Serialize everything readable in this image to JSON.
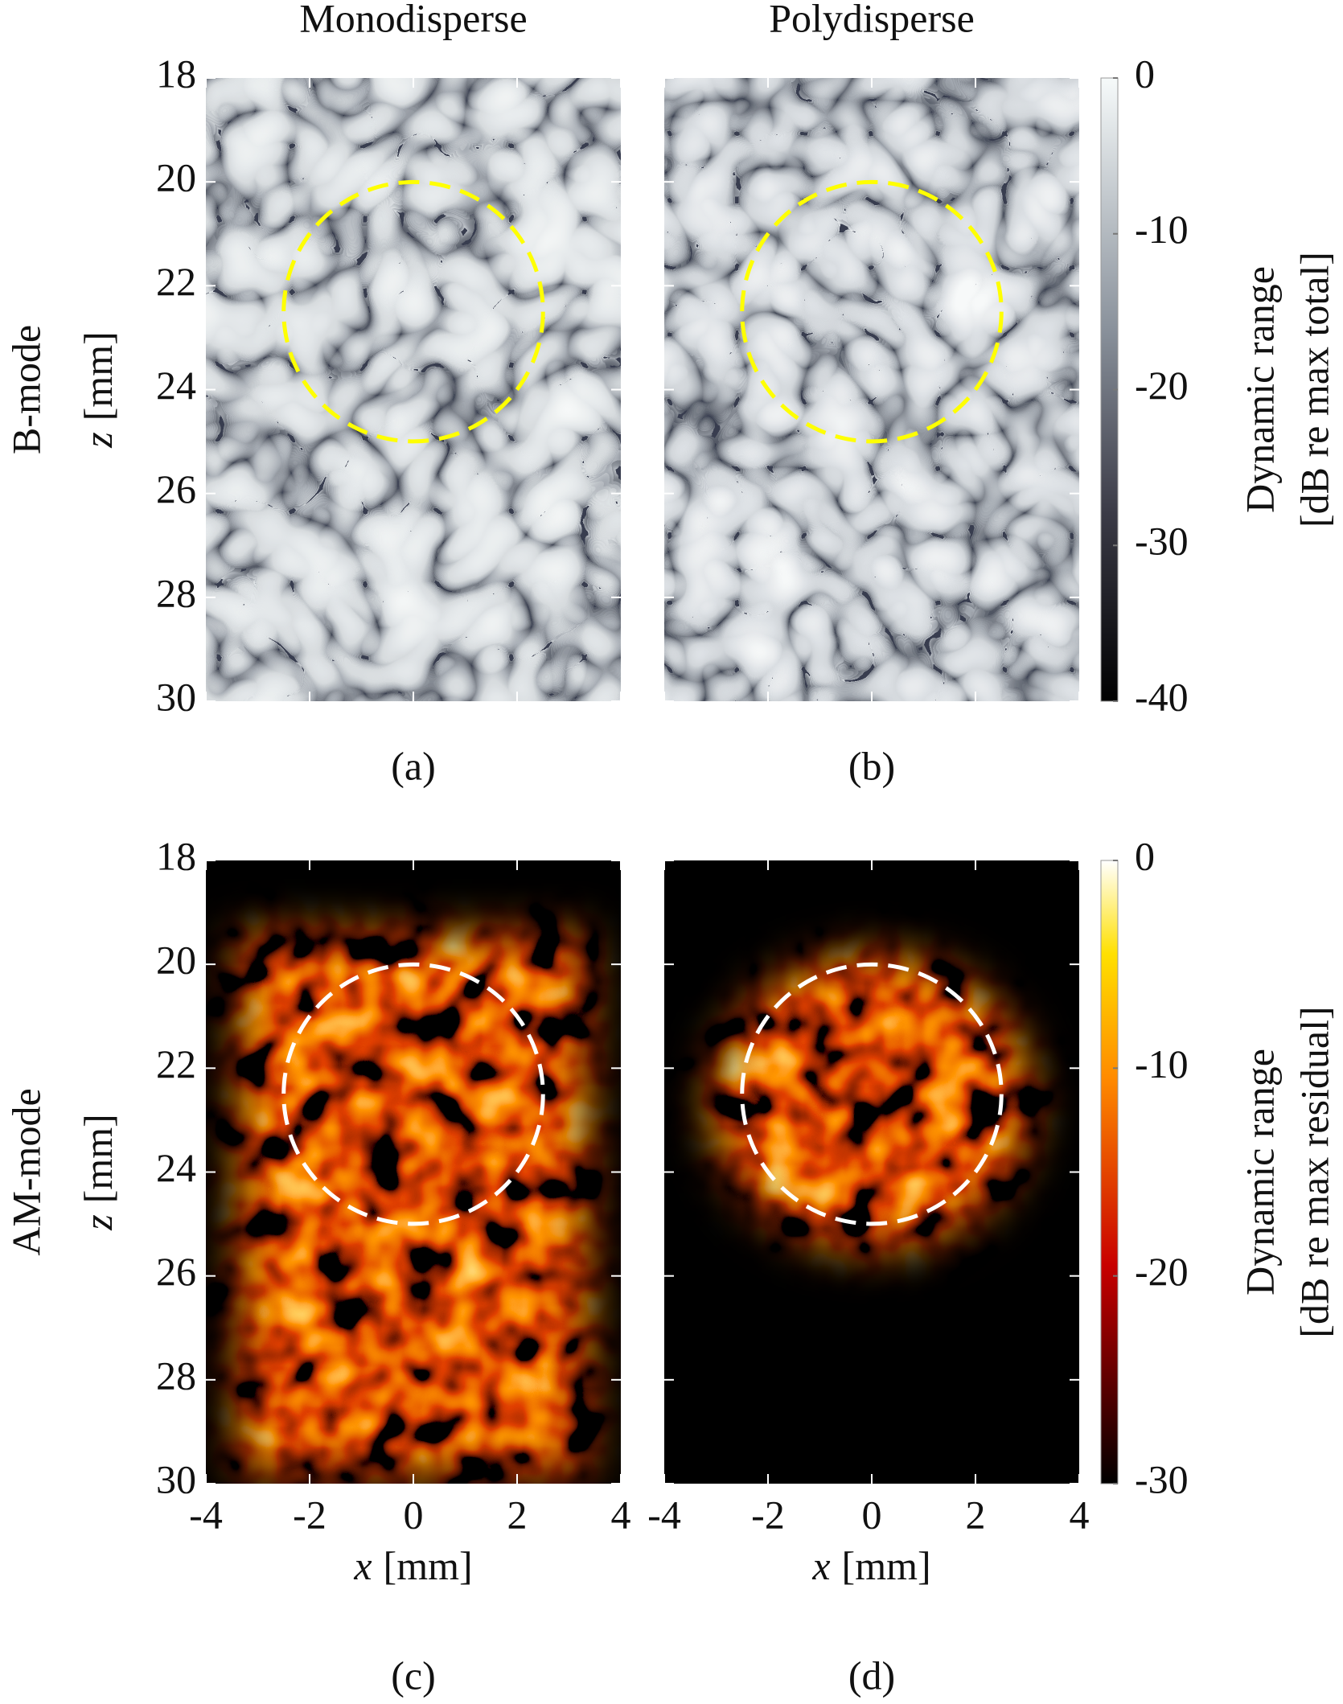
{
  "chart_data": [
    {
      "type": "heatmap",
      "title": "Monodisperse",
      "row_label": "B-mode",
      "panel_label": "(a)",
      "ylabel": {
        "var": "z",
        "unit": "[mm]"
      },
      "xlim": [
        -4,
        4
      ],
      "ylim": [
        18,
        30
      ],
      "y_inverted": true,
      "xticks": [
        -4,
        -2,
        0,
        2,
        4
      ],
      "yticks": [
        18,
        20,
        22,
        24,
        26,
        28,
        30
      ],
      "show_xticklabels": false,
      "show_yticklabels": true,
      "colormap": "gray",
      "circle": {
        "x": 0,
        "z": 22.5,
        "r": 2.5,
        "color": "#ffff00"
      }
    },
    {
      "type": "heatmap",
      "title": "Polydisperse",
      "panel_label": "(b)",
      "xlim": [
        -4,
        4
      ],
      "ylim": [
        18,
        30
      ],
      "y_inverted": true,
      "xticks": [
        -4,
        -2,
        0,
        2,
        4
      ],
      "yticks": [
        18,
        20,
        22,
        24,
        26,
        28,
        30
      ],
      "show_xticklabels": false,
      "show_yticklabels": false,
      "colormap": "gray",
      "circle": {
        "x": 0,
        "z": 22.5,
        "r": 2.5,
        "color": "#ffff00"
      },
      "colorbar": {
        "lim": [
          -40,
          0
        ],
        "ticks": [
          -40,
          -30,
          -20,
          -10,
          0
        ],
        "label": [
          "Dynamic range",
          "[dB re max total]"
        ]
      }
    },
    {
      "type": "heatmap",
      "row_label": "AM-mode",
      "panel_label": "(c)",
      "ylabel": {
        "var": "z",
        "unit": "[mm]"
      },
      "xlabel": {
        "var": "x",
        "unit": "[mm]"
      },
      "xlim": [
        -4,
        4
      ],
      "ylim": [
        18,
        30
      ],
      "y_inverted": true,
      "xticks": [
        -4,
        -2,
        0,
        2,
        4
      ],
      "yticks": [
        18,
        20,
        22,
        24,
        26,
        28,
        30
      ],
      "show_xticklabels": true,
      "show_yticklabels": true,
      "colormap": "hot",
      "circle": {
        "x": 0,
        "z": 22.5,
        "r": 2.5,
        "color": "#ffffff"
      }
    },
    {
      "type": "heatmap",
      "panel_label": "(d)",
      "xlabel": {
        "var": "x",
        "unit": "[mm]"
      },
      "xlim": [
        -4,
        4
      ],
      "ylim": [
        18,
        30
      ],
      "y_inverted": true,
      "xticks": [
        -4,
        -2,
        0,
        2,
        4
      ],
      "yticks": [
        18,
        20,
        22,
        24,
        26,
        28,
        30
      ],
      "show_xticklabels": true,
      "show_yticklabels": false,
      "colormap": "hot",
      "circle": {
        "x": 0,
        "z": 22.5,
        "r": 2.5,
        "color": "#ffffff"
      },
      "colorbar": {
        "lim": [
          -30,
          0
        ],
        "ticks": [
          -30,
          -20,
          -10,
          0
        ],
        "label": [
          "Dynamic range",
          "[dB re max residual]"
        ]
      }
    }
  ]
}
